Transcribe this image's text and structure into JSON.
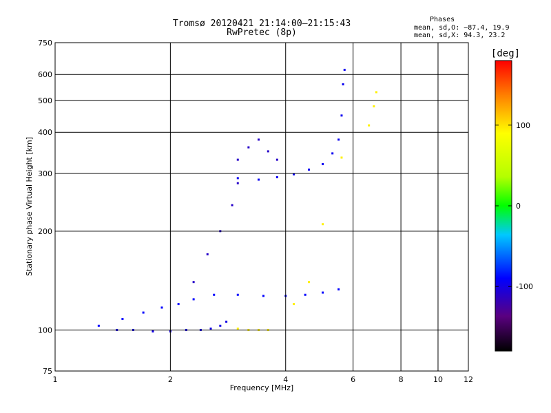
{
  "header": {
    "title": "Tromsø 20120421 21:14:00–21:15:43",
    "subtitle": "RwPretec (8p)"
  },
  "phases": {
    "heading": "Phases",
    "line_o": "mean, sd,O: −87.4, 19.9",
    "line_x": "mean, sd,X:  94.3, 23.2"
  },
  "chart_data": {
    "type": "scatter",
    "xlabel": "Frequency [MHz]",
    "ylabel": "Stationary phase Virtual Height [km]",
    "x_scale": "log",
    "y_scale": "log",
    "xlim": [
      1,
      12
    ],
    "ylim": [
      75,
      750
    ],
    "x_ticks": [
      1,
      2,
      4,
      6,
      8,
      10,
      12
    ],
    "y_ticks": [
      75,
      100,
      200,
      300,
      400,
      500,
      600,
      750
    ],
    "grid": true,
    "colorbar": {
      "label": "[deg]",
      "range": [
        -180,
        180
      ],
      "ticks": [
        100,
        0,
        -100
      ],
      "colors": [
        "#000000",
        "#5a0080",
        "#0000ff",
        "#00ffff",
        "#00ff00",
        "#ffff00",
        "#ff8000",
        "#ff0000"
      ]
    },
    "series": [
      {
        "kind": "o-mode lower layer",
        "phase_deg": -100,
        "points": [
          [
            1.45,
            100
          ],
          [
            1.6,
            100
          ],
          [
            1.8,
            99
          ],
          [
            2.0,
            99
          ],
          [
            2.2,
            100
          ],
          [
            2.4,
            100
          ],
          [
            2.55,
            101
          ],
          [
            2.7,
            103
          ],
          [
            2.8,
            106
          ]
        ]
      },
      {
        "kind": "o-mode intermediate",
        "phase_deg": -90,
        "points": [
          [
            1.3,
            103
          ],
          [
            1.5,
            108
          ],
          [
            1.7,
            113
          ],
          [
            1.9,
            117
          ],
          [
            2.1,
            120
          ],
          [
            2.3,
            124
          ],
          [
            2.6,
            128
          ],
          [
            3.0,
            128
          ],
          [
            3.5,
            127
          ],
          [
            4.0,
            127
          ],
          [
            4.5,
            128
          ],
          [
            5.0,
            130
          ],
          [
            5.5,
            133
          ]
        ]
      },
      {
        "kind": "o-mode spread",
        "phase_deg": -110,
        "points": [
          [
            2.3,
            140
          ],
          [
            2.5,
            170
          ],
          [
            2.7,
            200
          ],
          [
            2.9,
            240
          ],
          [
            3.0,
            280
          ],
          [
            3.0,
            330
          ],
          [
            3.2,
            360
          ],
          [
            3.4,
            380
          ],
          [
            3.6,
            350
          ],
          [
            3.8,
            330
          ]
        ]
      },
      {
        "kind": "F layer trace",
        "phase_deg": -95,
        "points": [
          [
            3.0,
            290
          ],
          [
            3.4,
            287
          ],
          [
            3.8,
            292
          ],
          [
            4.2,
            298
          ],
          [
            4.6,
            308
          ],
          [
            5.0,
            320
          ],
          [
            5.3,
            345
          ],
          [
            5.5,
            380
          ],
          [
            5.6,
            450
          ],
          [
            5.65,
            560
          ],
          [
            5.7,
            620
          ]
        ]
      },
      {
        "kind": "x-mode trace",
        "phase_deg": 95,
        "points": [
          [
            3.0,
            101
          ],
          [
            3.2,
            100
          ],
          [
            3.4,
            100
          ],
          [
            3.6,
            100
          ],
          [
            4.2,
            120
          ],
          [
            4.6,
            140
          ],
          [
            5.0,
            210
          ],
          [
            5.6,
            335
          ],
          [
            6.6,
            420
          ],
          [
            6.8,
            480
          ],
          [
            6.9,
            530
          ]
        ]
      }
    ]
  }
}
